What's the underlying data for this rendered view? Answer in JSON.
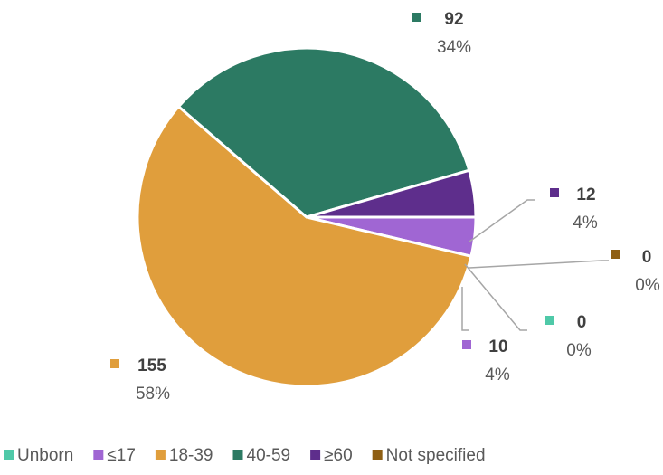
{
  "chart_data": {
    "type": "pie",
    "title": "",
    "slices": [
      {
        "label": "Unborn",
        "value": 0,
        "percent": "0%",
        "color": "#4FC9A8"
      },
      {
        "label": "≤17",
        "value": 10,
        "percent": "4%",
        "color": "#A066D3"
      },
      {
        "label": "18-39",
        "value": 155,
        "percent": "58%",
        "color": "#E09E3C"
      },
      {
        "label": "40-59",
        "value": 92,
        "percent": "34%",
        "color": "#2C7A63"
      },
      {
        "label": "≥60",
        "value": 12,
        "percent": "4%",
        "color": "#5E2E8C"
      },
      {
        "label": "Not specified",
        "value": 0,
        "percent": "0%",
        "color": "#8F5F13"
      }
    ],
    "legend_position": "bottom"
  }
}
